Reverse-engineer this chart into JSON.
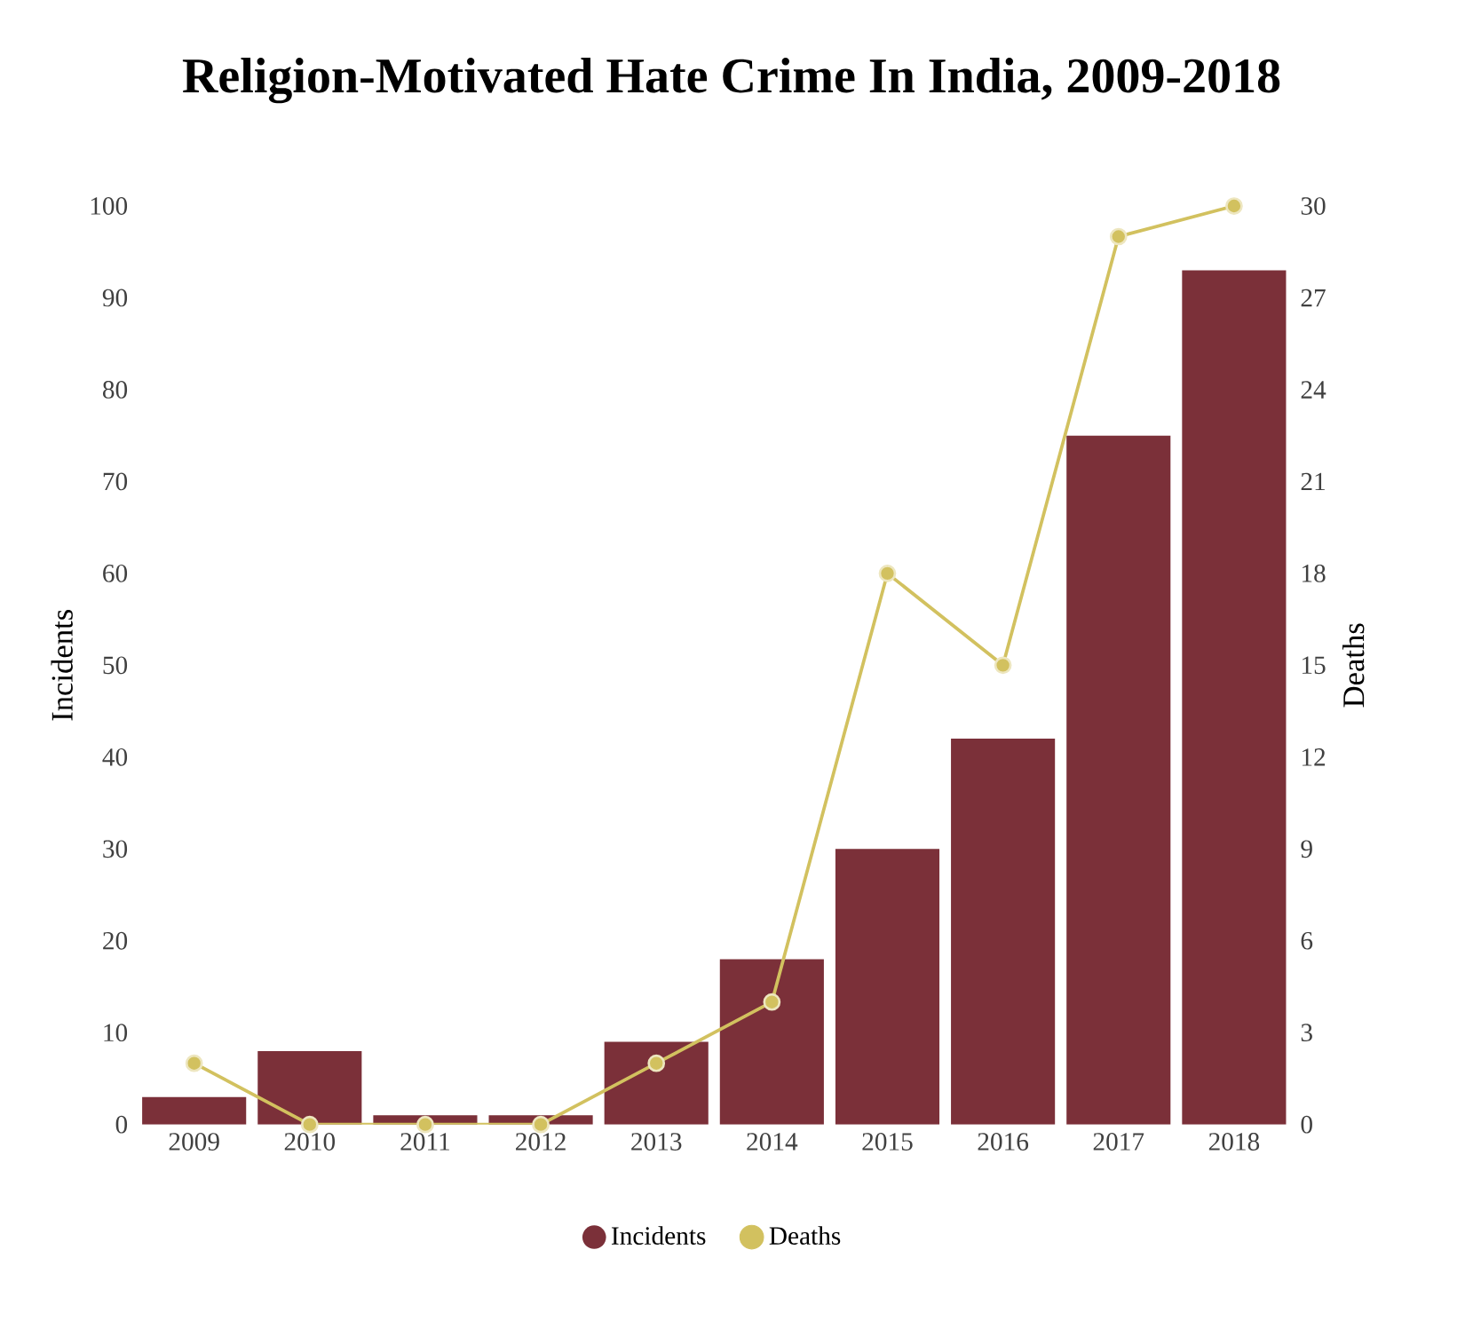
{
  "chart_data": {
    "type": "bar",
    "title": "Religion-Motivated Hate Crime In India, 2009-2018",
    "categories": [
      "2009",
      "2010",
      "2011",
      "2012",
      "2013",
      "2014",
      "2015",
      "2016",
      "2017",
      "2018"
    ],
    "series": [
      {
        "name": "Incidents",
        "color": "#7b3039",
        "values": [
          3,
          8,
          1,
          1,
          9,
          18,
          30,
          42,
          75,
          93
        ]
      },
      {
        "name": "Deaths",
        "type": "line",
        "axis": "y2",
        "color": "#d2c15f",
        "values": [
          2,
          0,
          0,
          0,
          2,
          4,
          18,
          15,
          29,
          30
        ]
      }
    ],
    "ylabel": "Incidents",
    "y2label": "Deaths",
    "ylim": [
      0,
      100
    ],
    "yticks": [
      0,
      10,
      20,
      30,
      40,
      50,
      60,
      70,
      80,
      90,
      100
    ],
    "y2lim": [
      0,
      30
    ],
    "y2ticks": [
      0,
      3,
      6,
      9,
      12,
      15,
      18,
      21,
      24,
      27,
      30
    ],
    "marker": "circle",
    "legend": "bottom"
  }
}
